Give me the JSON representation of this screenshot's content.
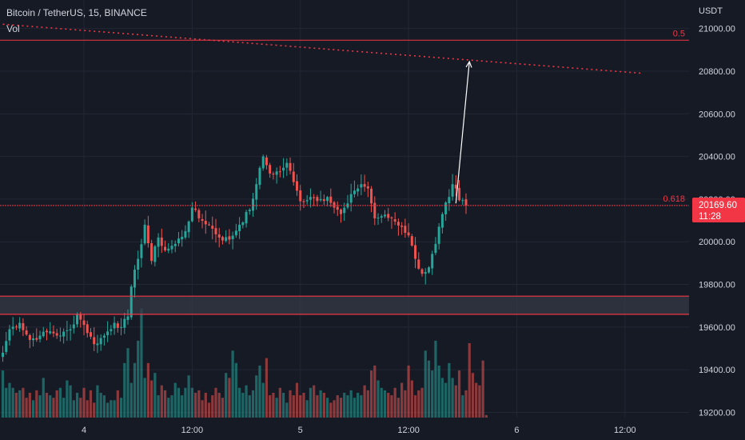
{
  "header": {
    "title": "Bitcoin / TetherUS, 15, BINANCE",
    "volume_label": "Vol"
  },
  "colors": {
    "background": "#161a25",
    "grid": "#232734",
    "text": "#d1d4dc",
    "up": "#26a69a",
    "down": "#ef5350",
    "drawing": "#f23645",
    "zone_fill": "#363a45",
    "arrow": "#ffffff"
  },
  "chart_data": {
    "type": "candlestick",
    "symbol": "BTCUSDT",
    "exchange": "BINANCE",
    "interval": "15",
    "currency_label": "USDT",
    "ylim": [
      19180,
      21070
    ],
    "y_ticks": [
      {
        "label": "21000.00",
        "value": 21000
      },
      {
        "label": "20800.00",
        "value": 20800
      },
      {
        "label": "20600.00",
        "value": 20600
      },
      {
        "label": "20400.00",
        "value": 20400
      },
      {
        "label": "20200.00",
        "value": 20200
      },
      {
        "label": "20000.00",
        "value": 20000
      },
      {
        "label": "19800.00",
        "value": 19800
      },
      {
        "label": "19600.00",
        "value": 19600
      },
      {
        "label": "19400.00",
        "value": 19400
      },
      {
        "label": "19200.00",
        "value": 19200
      }
    ],
    "x_ticks": [
      {
        "label": "4",
        "bar": 24
      },
      {
        "label": "12:00",
        "bar": 56
      },
      {
        "label": "5",
        "bar": 88
      },
      {
        "label": "12:00",
        "bar": 120
      },
      {
        "label": "6",
        "bar": 152
      },
      {
        "label": "12:00",
        "bar": 184
      }
    ],
    "last_price": {
      "label": "20169.60",
      "countdown": "11:28",
      "value": 20169.6
    },
    "grid": true,
    "drawings": {
      "fib_levels": [
        {
          "label": "0.5",
          "price": 20945
        },
        {
          "label": "0.618",
          "price": 20170
        }
      ],
      "trendline": {
        "start": {
          "bar": 0,
          "price": 21020
        },
        "end": {
          "bar": 189,
          "price": 20790
        }
      },
      "support_zone": {
        "top": 19745,
        "bottom": 19660
      },
      "arrow": {
        "from": {
          "bar": 134,
          "price": 20180
        },
        "to": {
          "bar": 138,
          "price": 20845
        }
      }
    },
    "anchors": [
      [
        0,
        19480
      ],
      [
        2,
        19590
      ],
      [
        5,
        19620
      ],
      [
        8,
        19540
      ],
      [
        11,
        19560
      ],
      [
        14,
        19580
      ],
      [
        17,
        19560
      ],
      [
        20,
        19590
      ],
      [
        22,
        19660
      ],
      [
        24,
        19610
      ],
      [
        27,
        19520
      ],
      [
        30,
        19560
      ],
      [
        33,
        19620
      ],
      [
        35,
        19600
      ],
      [
        37,
        19650
      ],
      [
        38,
        19790
      ],
      [
        40,
        19920
      ],
      [
        42,
        20080
      ],
      [
        44,
        19910
      ],
      [
        46,
        20020
      ],
      [
        48,
        19960
      ],
      [
        51,
        19990
      ],
      [
        54,
        20050
      ],
      [
        56,
        20160
      ],
      [
        58,
        20110
      ],
      [
        61,
        20080
      ],
      [
        64,
        20020
      ],
      [
        67,
        20010
      ],
      [
        70,
        20080
      ],
      [
        73,
        20150
      ],
      [
        75,
        20270
      ],
      [
        77,
        20400
      ],
      [
        79,
        20320
      ],
      [
        82,
        20330
      ],
      [
        84,
        20370
      ],
      [
        86,
        20280
      ],
      [
        88,
        20190
      ],
      [
        91,
        20210
      ],
      [
        94,
        20200
      ],
      [
        96,
        20210
      ],
      [
        98,
        20160
      ],
      [
        100,
        20130
      ],
      [
        102,
        20180
      ],
      [
        104,
        20240
      ],
      [
        106,
        20270
      ],
      [
        108,
        20250
      ],
      [
        110,
        20110
      ],
      [
        112,
        20120
      ],
      [
        115,
        20110
      ],
      [
        118,
        20070
      ],
      [
        120,
        20030
      ],
      [
        122,
        19920
      ],
      [
        124,
        19850
      ],
      [
        126,
        19880
      ],
      [
        128,
        19990
      ],
      [
        130,
        20130
      ],
      [
        132,
        20210
      ],
      [
        133,
        20270
      ],
      [
        134,
        20250
      ],
      [
        135,
        20195
      ],
      [
        137,
        20169.6
      ]
    ],
    "volume": [
      19,
      12,
      14,
      12,
      10,
      11,
      12,
      8,
      10,
      7,
      11,
      9,
      16,
      10,
      9,
      8,
      11,
      12,
      8,
      15,
      13,
      7,
      10,
      8,
      12,
      7,
      11,
      6,
      13,
      10,
      9,
      6,
      7,
      7,
      11,
      8,
      22,
      28,
      14,
      22,
      31,
      44,
      16,
      22,
      15,
      18,
      9,
      13,
      11,
      8,
      9,
      14,
      12,
      9,
      12,
      17,
      12,
      10,
      11,
      7,
      10,
      6,
      9,
      12,
      10,
      8,
      18,
      16,
      27,
      22,
      12,
      10,
      13,
      9,
      11,
      17,
      21,
      14,
      24,
      9,
      10,
      8,
      12,
      10,
      6,
      11,
      9,
      14,
      9,
      10,
      7,
      12,
      13,
      9,
      11,
      10,
      8,
      6,
      7,
      9,
      8,
      10,
      9,
      11,
      8,
      10,
      9,
      13,
      11,
      19,
      21,
      15,
      12,
      11,
      10,
      9,
      12,
      8,
      14,
      11,
      21,
      15,
      9,
      11,
      12,
      27,
      23,
      19,
      31,
      21,
      16,
      14,
      22,
      16,
      13,
      19,
      9,
      11,
      30,
      18,
      14,
      13,
      23,
      1
    ]
  }
}
